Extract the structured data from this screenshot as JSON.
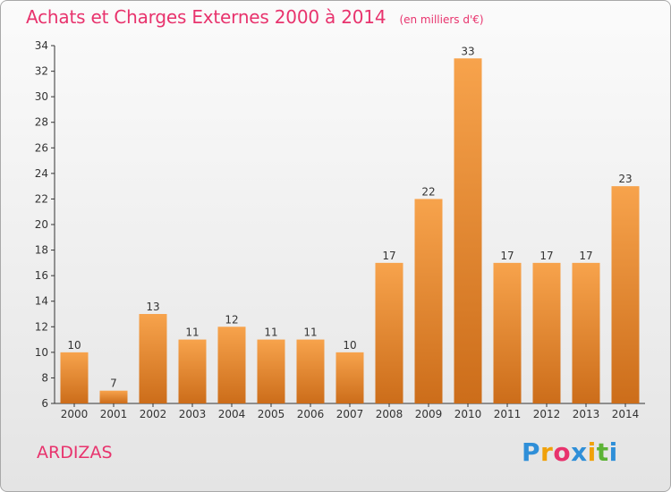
{
  "header": {
    "title": "Achats et Charges Externes 2000 à 2014",
    "subtitle": "(en milliers d'€)"
  },
  "place": "ARDIZAS",
  "logo": {
    "text": "Proxiti",
    "colors": [
      "#2f8fd8",
      "#f0a10a",
      "#e8336d",
      "#2f8fd8",
      "#f0a10a",
      "#5db336",
      "#2f8fd8"
    ]
  },
  "chart_data": {
    "type": "bar",
    "categories": [
      "2000",
      "2001",
      "2002",
      "2003",
      "2004",
      "2005",
      "2006",
      "2007",
      "2008",
      "2009",
      "2010",
      "2011",
      "2012",
      "2013",
      "2014"
    ],
    "values": [
      10,
      7,
      13,
      11,
      12,
      11,
      11,
      10,
      17,
      22,
      33,
      17,
      17,
      17,
      23
    ],
    "value_labels": [
      "10",
      "7",
      "13",
      "11",
      "12",
      "11",
      "11",
      "10",
      "17",
      "22",
      "33",
      "17",
      "17",
      "17",
      "23"
    ],
    "ylim": [
      6,
      34
    ],
    "yticks": [
      6,
      8,
      10,
      12,
      14,
      16,
      18,
      20,
      22,
      24,
      26,
      28,
      30,
      32,
      34
    ],
    "grid": false,
    "bar_color_top": "#f7a34c",
    "bar_color_bottom": "#cc6d1a"
  }
}
